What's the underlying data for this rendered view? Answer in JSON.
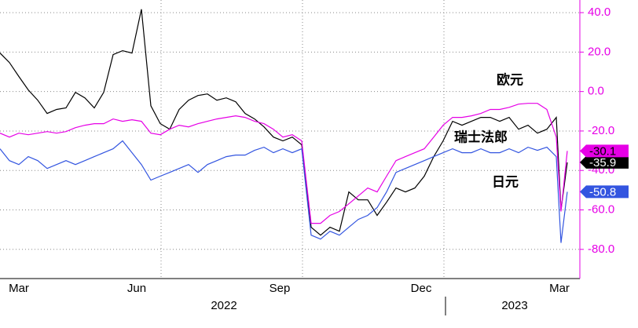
{
  "chart_data": {
    "type": "line",
    "x": [
      0,
      6,
      12,
      18,
      24,
      30,
      36,
      42,
      48,
      54,
      60,
      66,
      72,
      78,
      84,
      90,
      96,
      102,
      108,
      114,
      120,
      126,
      132,
      138,
      144,
      150,
      156,
      162,
      168,
      174,
      180,
      186,
      192,
      198,
      204,
      210,
      216,
      222,
      228,
      234,
      240,
      246,
      252,
      258,
      264,
      270,
      276,
      282,
      288,
      294,
      300,
      306,
      312,
      318,
      324,
      330,
      336,
      342,
      348,
      354,
      357,
      361
    ],
    "xlim": [
      0,
      369
    ],
    "xticks": [
      {
        "value": 12,
        "label": "Mar"
      },
      {
        "value": 87,
        "label": "Jun"
      },
      {
        "value": 178,
        "label": "Sep"
      },
      {
        "value": 268,
        "label": "Dec"
      },
      {
        "value": 356,
        "label": "Mar"
      }
    ],
    "years": [
      "2022",
      "2023"
    ],
    "ylim": [
      -94.8,
      46.4
    ],
    "yticks": [
      {
        "value": 40,
        "label": "40.0"
      },
      {
        "value": 20,
        "label": "20.0"
      },
      {
        "value": 0,
        "label": "0.0"
      },
      {
        "value": -20,
        "label": "-20.0"
      },
      {
        "value": -40,
        "label": "-40.0"
      },
      {
        "value": -60,
        "label": "-60.0"
      },
      {
        "value": -80,
        "label": "-80.0"
      }
    ],
    "grid": true,
    "axis_color": "#e600e6",
    "series": [
      {
        "name": "瑞士法郎",
        "color": "#000000",
        "values": [
          19.5,
          14.7,
          7.6,
          0.8,
          -4.4,
          -11.1,
          -9.1,
          -8.3,
          -0.4,
          -3.2,
          -8.3,
          -0.4,
          18.7,
          20.7,
          19.5,
          41.7,
          -7.2,
          -16.3,
          -19.1,
          -9.1,
          -4.4,
          -2,
          -1.2,
          -4.4,
          -3.2,
          -5.2,
          -11.1,
          -13.9,
          -17.9,
          -23.1,
          -25,
          -23.1,
          -27,
          -68.8,
          -72.8,
          -68.8,
          -70.8,
          -50.9,
          -54.9,
          -54.9,
          -62.8,
          -56.1,
          -48.9,
          -50.9,
          -48.9,
          -42.9,
          -33,
          -25,
          -15.1,
          -17.1,
          -15.1,
          -13.1,
          -13.1,
          -15.1,
          -13.1,
          -19.1,
          -17.1,
          -21.1,
          -19.1,
          -13.1,
          -60,
          -35.9
        ]
      },
      {
        "name": "欧元",
        "color": "#e600e6",
        "values": [
          -21.1,
          -23.1,
          -21.1,
          -21.9,
          -21.1,
          -20.3,
          -21.1,
          -20.3,
          -18.3,
          -17.1,
          -16.3,
          -16.3,
          -13.9,
          -15.1,
          -14.3,
          -15.1,
          -21.1,
          -21.9,
          -19.1,
          -17.1,
          -17.9,
          -16.3,
          -15.1,
          -13.9,
          -13.1,
          -12.3,
          -13.1,
          -15.1,
          -16.3,
          -19.1,
          -23.1,
          -21.9,
          -25,
          -66.8,
          -66.8,
          -62.8,
          -60.8,
          -56.9,
          -52.9,
          -48.9,
          -50.9,
          -42.9,
          -35,
          -33,
          -31,
          -29,
          -23.1,
          -17.1,
          -13.1,
          -13.1,
          -12.3,
          -11.1,
          -9.1,
          -9.1,
          -8,
          -6.4,
          -6,
          -6,
          -9.1,
          -23.1,
          -60.8,
          -30.1
        ]
      },
      {
        "name": "日元",
        "color": "#3355e0",
        "values": [
          -29,
          -35,
          -37,
          -33,
          -35,
          -39,
          -37,
          -35,
          -37,
          -35,
          -33,
          -31,
          -29,
          -25,
          -31,
          -37,
          -44.9,
          -42.9,
          -41,
          -39,
          -37,
          -41,
          -37,
          -35,
          -33,
          -32.2,
          -32.2,
          -29.8,
          -28.2,
          -31,
          -29,
          -31,
          -29,
          -72.8,
          -74.8,
          -70.8,
          -72.8,
          -68.8,
          -64.8,
          -62.8,
          -58.8,
          -50.9,
          -41,
          -39,
          -37,
          -35,
          -33,
          -31,
          -29,
          -31,
          -31,
          -29,
          -31,
          -31,
          -29,
          -31,
          -28.2,
          -29.8,
          -28.2,
          -33,
          -76.7,
          -50.8
        ]
      }
    ]
  }
}
